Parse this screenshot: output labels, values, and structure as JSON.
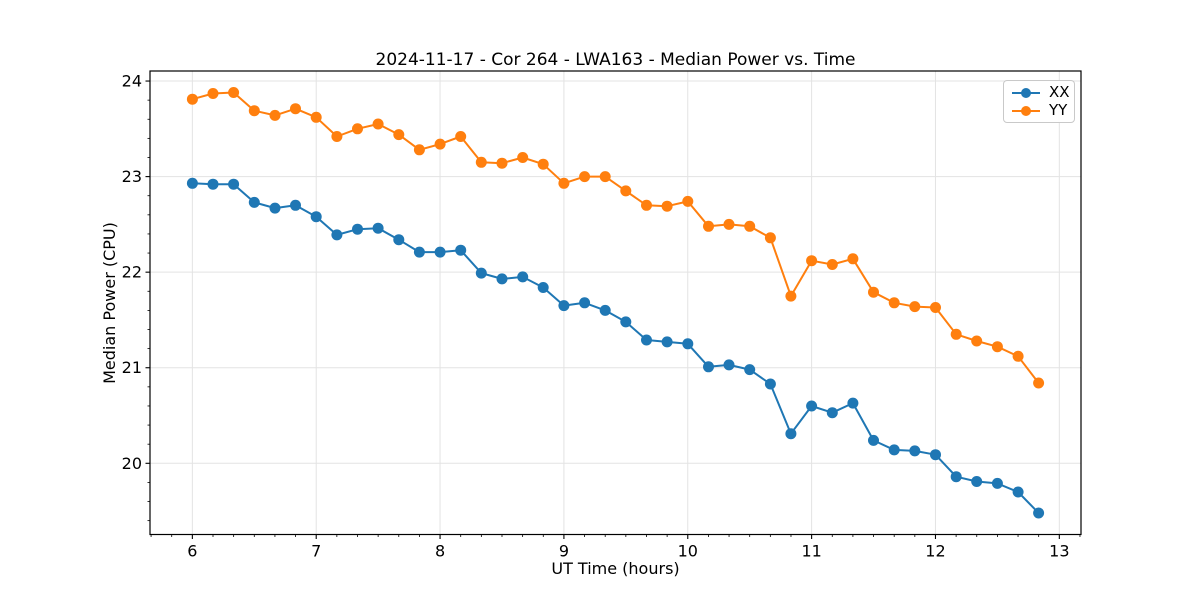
{
  "chart_data": {
    "type": "line",
    "title": "2024-11-17 - Cor 264 - LWA163 - Median Power vs. Time",
    "xlabel": "UT Time (hours)",
    "ylabel": "Median Power (CPU)",
    "xlim": [
      5.658,
      13.175
    ],
    "ylim": [
      19.255,
      24.105
    ],
    "xticks": [
      6,
      7,
      8,
      9,
      10,
      11,
      12,
      13
    ],
    "yticks": [
      20,
      21,
      22,
      23,
      24
    ],
    "grid": true,
    "legend": {
      "position": "upper right",
      "entries": [
        "XX",
        "YY"
      ]
    },
    "x": [
      6.0,
      6.167,
      6.333,
      6.5,
      6.667,
      6.833,
      7.0,
      7.167,
      7.333,
      7.5,
      7.667,
      7.833,
      8.0,
      8.167,
      8.333,
      8.5,
      8.667,
      8.833,
      9.0,
      9.167,
      9.333,
      9.5,
      9.667,
      9.833,
      10.0,
      10.167,
      10.333,
      10.5,
      10.667,
      10.833,
      11.0,
      11.167,
      11.333,
      11.5,
      11.667,
      11.833,
      12.0,
      12.167,
      12.333,
      12.5,
      12.667,
      12.833
    ],
    "series": [
      {
        "name": "XX",
        "color": "#1f77b4",
        "values": [
          22.93,
          22.92,
          22.92,
          22.73,
          22.67,
          22.7,
          22.58,
          22.39,
          22.45,
          22.46,
          22.34,
          22.21,
          22.21,
          22.23,
          21.99,
          21.93,
          21.95,
          21.84,
          21.65,
          21.68,
          21.6,
          21.48,
          21.29,
          21.27,
          21.25,
          21.01,
          21.03,
          20.98,
          20.83,
          20.31,
          20.6,
          20.53,
          20.63,
          20.24,
          20.14,
          20.13,
          20.09,
          19.86,
          19.81,
          19.79,
          19.7,
          19.48
        ]
      },
      {
        "name": "YY",
        "color": "#ff7f0e",
        "values": [
          23.81,
          23.87,
          23.88,
          23.69,
          23.64,
          23.71,
          23.62,
          23.42,
          23.5,
          23.55,
          23.44,
          23.28,
          23.34,
          23.42,
          23.15,
          23.14,
          23.2,
          23.13,
          22.93,
          23.0,
          23.0,
          22.85,
          22.7,
          22.69,
          22.74,
          22.48,
          22.5,
          22.48,
          22.36,
          21.75,
          22.12,
          22.08,
          22.14,
          21.79,
          21.68,
          21.64,
          21.63,
          21.35,
          21.28,
          21.22,
          21.12,
          20.84
        ]
      }
    ],
    "style_hints": {
      "line_width": 2,
      "marker": "circle",
      "marker_radius": 5.5,
      "grid_color": "#e3e3e3",
      "spine_color": "#000000"
    }
  }
}
